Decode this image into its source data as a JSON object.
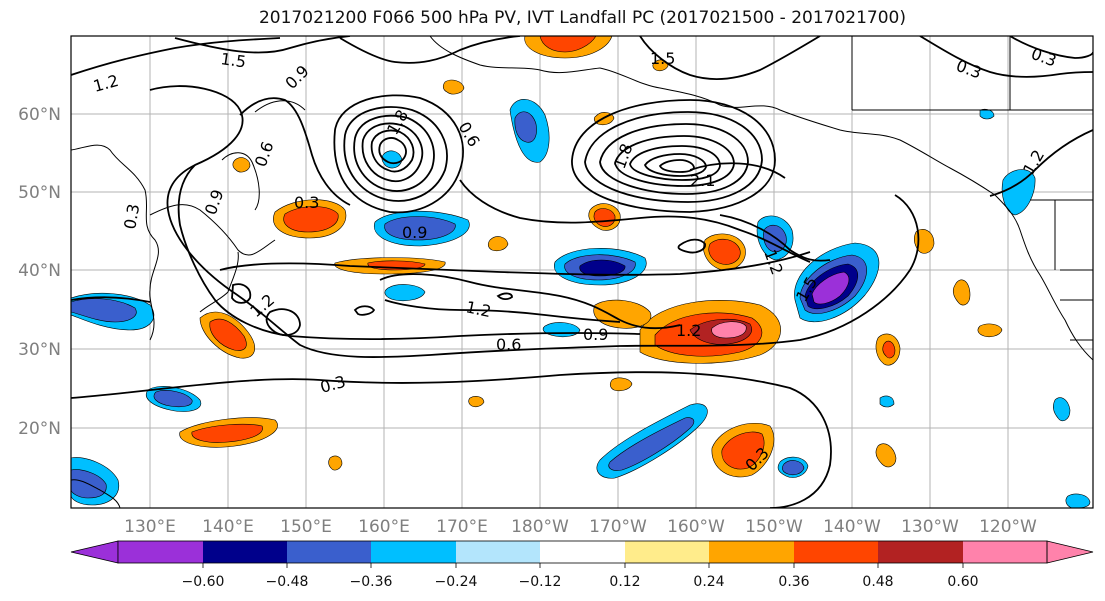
{
  "title": "2017021200 F066 500 hPa PV, IVT Landfall PC (2017021500 - 2017021700)",
  "map": {
    "lat_labels": [
      "60°N",
      "50°N",
      "40°N",
      "30°N",
      "20°N"
    ],
    "lon_labels": [
      "130°E",
      "140°E",
      "150°E",
      "160°E",
      "170°E",
      "180°W",
      "170°W",
      "160°W",
      "150°W",
      "140°W",
      "130°W",
      "120°W"
    ],
    "pv_contour_labels": [
      "1.2",
      "1.5",
      "0.9",
      "1.5",
      "0.3",
      "0.3",
      "0.6",
      "0.9",
      "0.3",
      "0.3",
      "0.6",
      "0.9",
      "1.2",
      "1.2",
      "0.6",
      "0.9",
      "1.2",
      "1.5",
      "0.3",
      "0.3",
      "2.1",
      "1.8",
      "1.8",
      "1.2",
      "1.2"
    ],
    "colors": {
      "coast": "#000000",
      "grid": "#b3b3b3",
      "contour": "#000000"
    }
  },
  "colorbar": {
    "tick_labels": [
      "−0.60",
      "−0.48",
      "−0.36",
      "−0.24",
      "−0.12",
      "0.12",
      "0.24",
      "0.36",
      "0.48",
      "0.60"
    ],
    "colors": [
      "#9b30d9",
      "#00008b",
      "#3a5fcd",
      "#00bfff",
      "#b3e5fc",
      "#ffffff",
      "#ffec8b",
      "#ffa500",
      "#ff4500",
      "#b22222",
      "#ff82ab"
    ]
  }
}
